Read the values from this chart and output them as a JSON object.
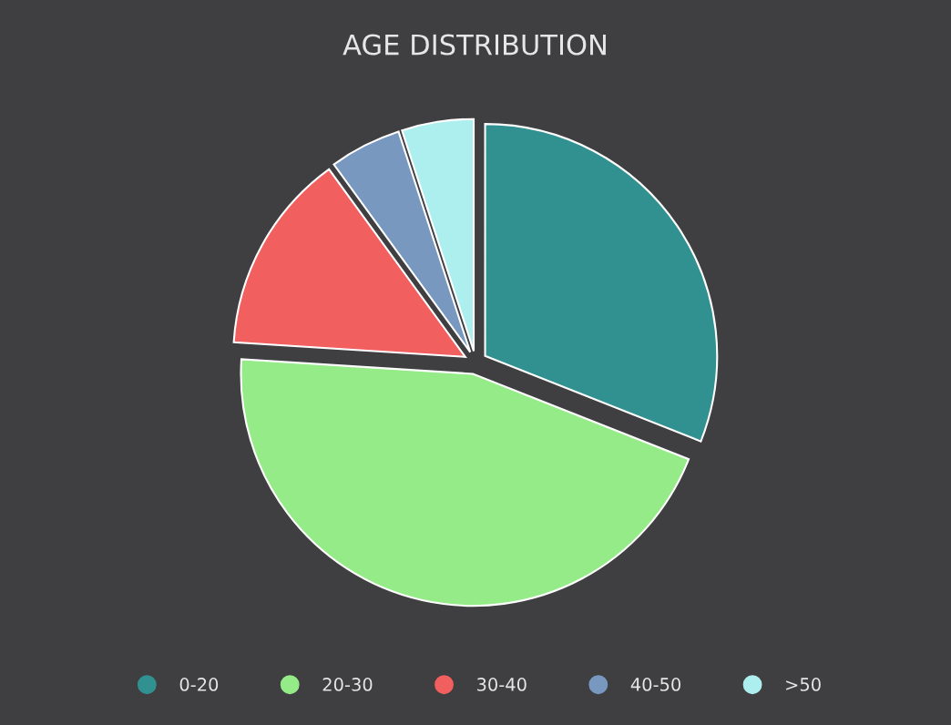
{
  "chart_data": {
    "type": "pie",
    "title": "AGE DISTRIBUTION",
    "categories": [
      "0-20",
      "20-30",
      "30-40",
      "40-50",
      ">50"
    ],
    "values": [
      31,
      45,
      14,
      5,
      5
    ],
    "colors": [
      "#319190",
      "#94eb87",
      "#f25f5f",
      "#7898c0",
      "#adeeee"
    ],
    "legend": "bottom"
  }
}
